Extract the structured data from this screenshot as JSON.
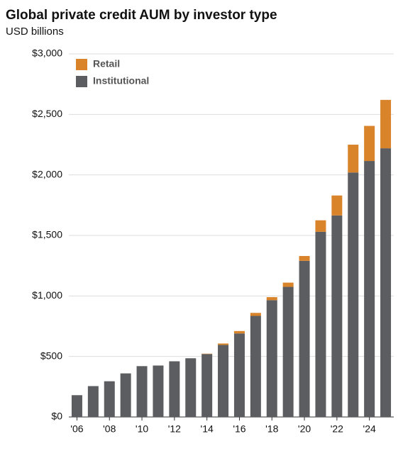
{
  "chart_data": {
    "type": "stacked_bar",
    "title": "Global private credit AUM by investor type",
    "subtitle": "USD billions",
    "categories": [
      "'06",
      null,
      "'08",
      null,
      "'10",
      null,
      "'12",
      null,
      "'14",
      null,
      "'16",
      null,
      "'18",
      null,
      "'20",
      null,
      "'22",
      null,
      "'24",
      null
    ],
    "series": [
      {
        "name": "Institutional",
        "color": "#5b5d60",
        "values": [
          180,
          255,
          295,
          360,
          420,
          425,
          460,
          485,
          520,
          595,
          690,
          835,
          965,
          1075,
          1290,
          1530,
          1665,
          2020,
          2115,
          2220
        ]
      },
      {
        "name": "Retail",
        "color": "#d9832b",
        "values": [
          0,
          0,
          0,
          0,
          0,
          0,
          0,
          0,
          3,
          12,
          20,
          25,
          25,
          35,
          40,
          95,
          165,
          230,
          290,
          400
        ]
      }
    ],
    "ylim": [
      0,
      3000
    ],
    "yticks": [
      {
        "value": 0,
        "label": "$0"
      },
      {
        "value": 500,
        "label": "$500"
      },
      {
        "value": 1000,
        "label": "$1,000"
      },
      {
        "value": 1500,
        "label": "$1,500"
      },
      {
        "value": 2000,
        "label": "$2,000"
      },
      {
        "value": 2500,
        "label": "$2,500"
      },
      {
        "value": 3000,
        "label": "$3,000"
      }
    ],
    "grid": true,
    "legend": "top-left"
  }
}
